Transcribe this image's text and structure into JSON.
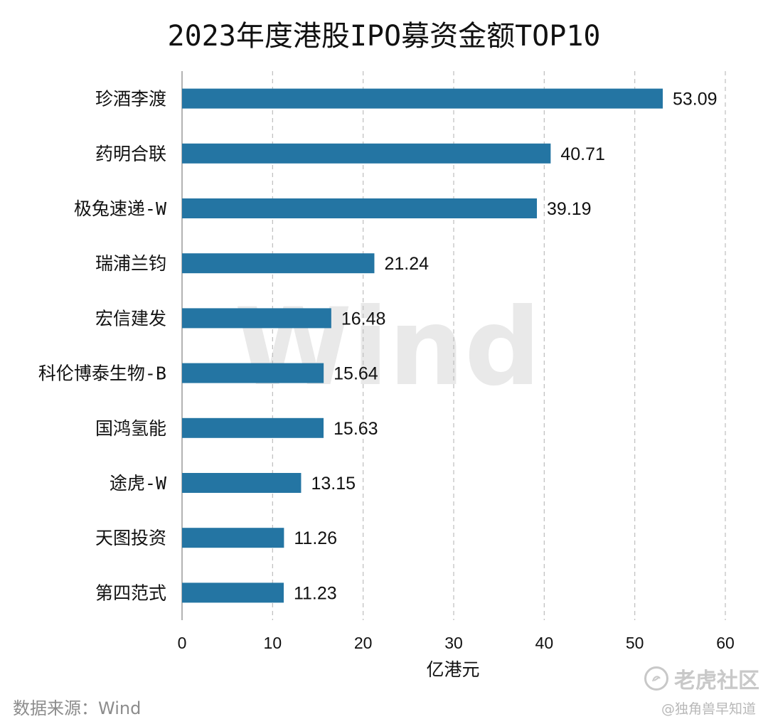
{
  "chart_data": {
    "type": "bar",
    "orientation": "horizontal",
    "title": "2023年度港股IPO募资金额TOP10",
    "xlabel": "亿港元",
    "ylabel": "",
    "xlim": [
      0,
      60
    ],
    "xticks": [
      0,
      10,
      20,
      30,
      40,
      50,
      60
    ],
    "grid": "vertical-dashed",
    "bar_color": "#2475a3",
    "categories": [
      "珍酒李渡",
      "药明合联",
      "极兔速递-W",
      "瑞浦兰钧",
      "宏信建发",
      "科伦博泰生物-B",
      "国鸿氢能",
      "途虎-W",
      "天图投资",
      "第四范式"
    ],
    "values": [
      53.09,
      40.71,
      39.19,
      21.24,
      16.48,
      15.64,
      15.63,
      13.15,
      11.26,
      11.23
    ],
    "value_labels": [
      "53.09",
      "40.71",
      "39.19",
      "21.24",
      "16.48",
      "15.64",
      "15.63",
      "13.15",
      "11.26",
      "11.23"
    ]
  },
  "watermark": "Wind",
  "source": "数据来源：Wind",
  "brand": {
    "name": "老虎社区",
    "handle": "@独角兽早知道"
  }
}
